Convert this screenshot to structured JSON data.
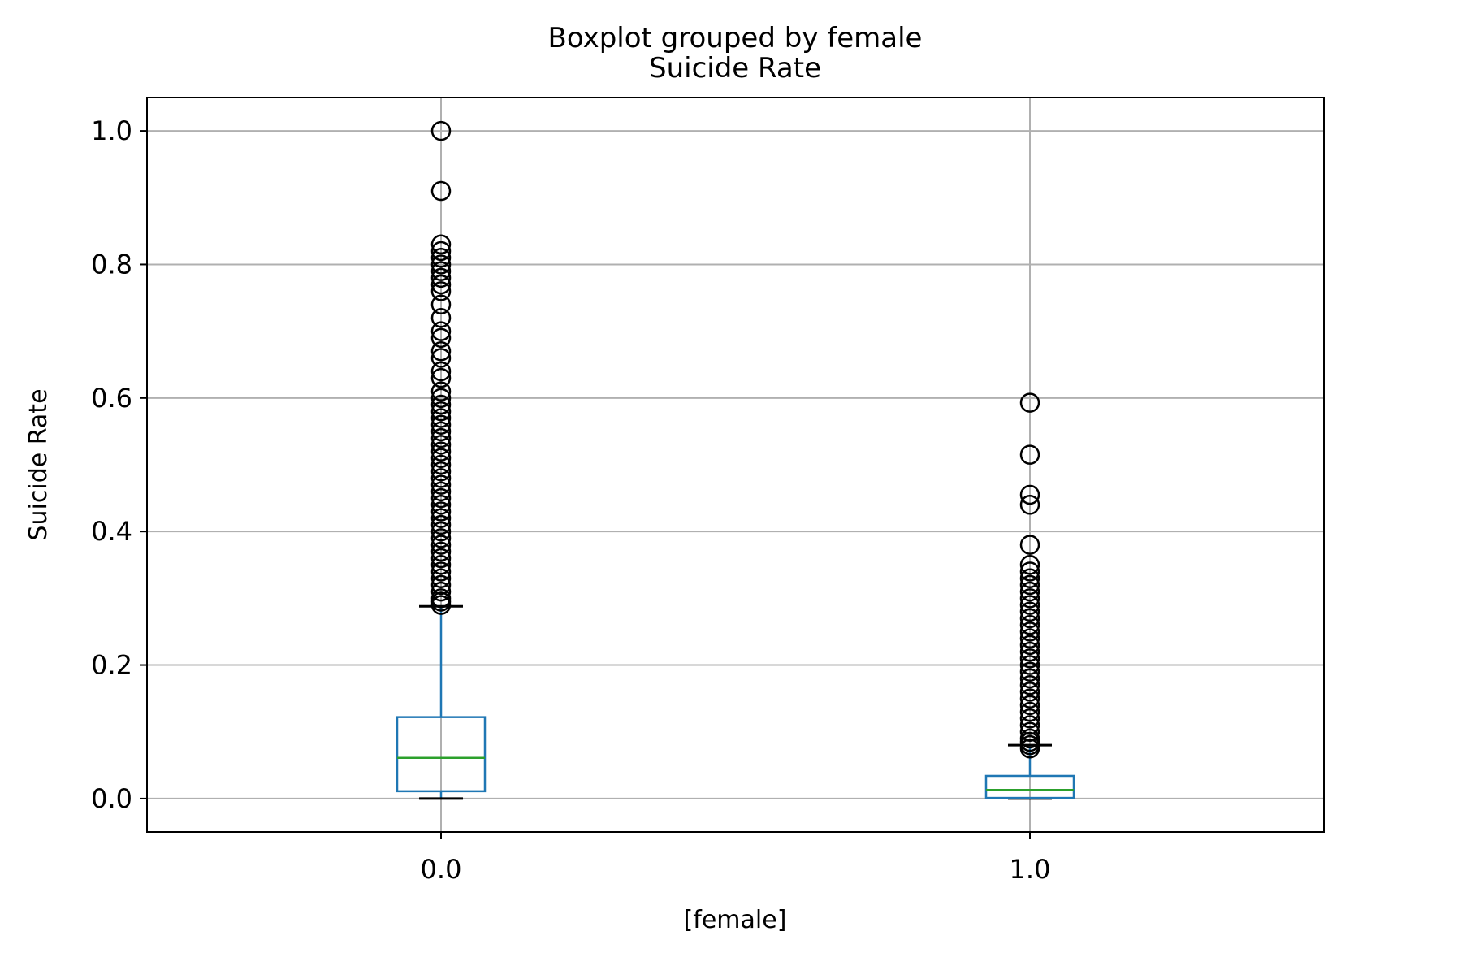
{
  "chart_data": {
    "type": "boxplot",
    "suptitle": "Boxplot grouped by female",
    "title": "Suicide Rate",
    "xlabel": "[female]",
    "ylabel": "Suicide Rate",
    "ylim": [
      -0.05,
      1.05
    ],
    "yticks": [
      0.0,
      0.2,
      0.4,
      0.6,
      0.8,
      1.0
    ],
    "ytick_labels": [
      "0.0",
      "0.2",
      "0.4",
      "0.6",
      "0.8",
      "1.0"
    ],
    "categories": [
      "0.0",
      "1.0"
    ],
    "grid": true,
    "colors": {
      "box": "#1f77b4",
      "median": "#2ca02c",
      "outlier": "#000000",
      "grid": "#b0b0b0"
    },
    "boxes": [
      {
        "category": "0.0",
        "whisker_low": 0.0,
        "q1": 0.011,
        "median": 0.061,
        "q3": 0.122,
        "whisker_high": 0.288,
        "outliers": [
          0.29,
          0.295,
          0.3,
          0.31,
          0.32,
          0.33,
          0.34,
          0.35,
          0.36,
          0.37,
          0.38,
          0.39,
          0.4,
          0.41,
          0.42,
          0.43,
          0.44,
          0.45,
          0.46,
          0.47,
          0.48,
          0.49,
          0.5,
          0.51,
          0.52,
          0.53,
          0.54,
          0.55,
          0.56,
          0.57,
          0.58,
          0.59,
          0.6,
          0.61,
          0.63,
          0.64,
          0.66,
          0.67,
          0.69,
          0.7,
          0.72,
          0.74,
          0.76,
          0.77,
          0.78,
          0.79,
          0.8,
          0.81,
          0.82,
          0.83,
          0.91,
          1.0
        ]
      },
      {
        "category": "1.0",
        "whisker_low": 0.0,
        "q1": 0.001,
        "median": 0.013,
        "q3": 0.034,
        "whisker_high": 0.08,
        "outliers": [
          0.075,
          0.08,
          0.085,
          0.09,
          0.1,
          0.11,
          0.12,
          0.13,
          0.14,
          0.15,
          0.16,
          0.17,
          0.18,
          0.19,
          0.2,
          0.21,
          0.22,
          0.23,
          0.24,
          0.25,
          0.26,
          0.27,
          0.28,
          0.29,
          0.3,
          0.31,
          0.32,
          0.33,
          0.34,
          0.35,
          0.38,
          0.44,
          0.455,
          0.515,
          0.593
        ]
      }
    ]
  }
}
